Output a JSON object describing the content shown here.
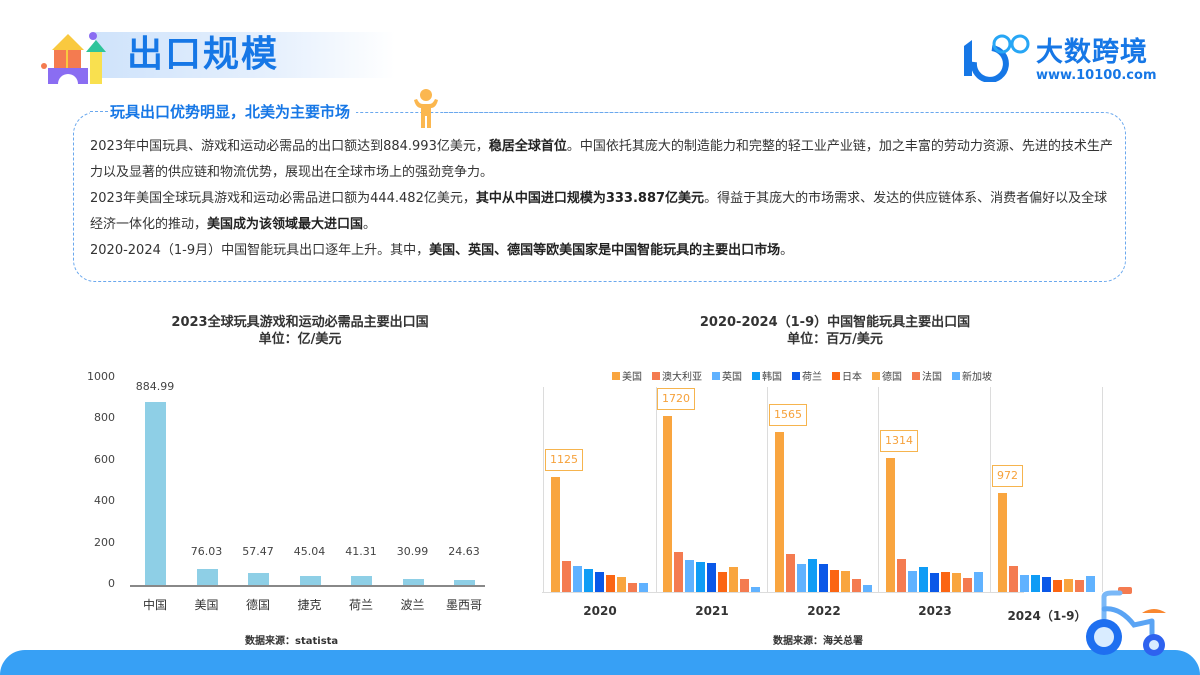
{
  "header": {
    "title": "出口规模",
    "logo_text": "大数跨境",
    "logo_url": "www.10100.com",
    "logo_mark": "1C100"
  },
  "info": {
    "heading": "玩具出口优势明显，北美为主要市场",
    "p1_a": "2023年中国玩具、游戏和运动必需品的出口额达到884.993亿美元，",
    "p1_b": "稳居全球首位",
    "p1_c": "。中国依托其庞大的制造能力和完整的轻工业产业链，加之丰富的劳动力资源、先进的技术生产力以及显著的供应链和物流优势，展现出在全球市场上的强劲竞争力。",
    "p2_a": "2023年美国全球玩具游戏和运动必需品进口额为444.482亿美元，",
    "p2_b": "其中从中国进口规模为333.887亿美元",
    "p2_c": "。得益于其庞大的市场需求、发达的供应链体系、消费者偏好以及全球经济一体化的推动，",
    "p2_d": "美国成为该领域最大进口国",
    "p2_e": "。",
    "p3_a": "2020-2024（1-9月）中国智能玩具出口逐年上升。其中，",
    "p3_b": "美国、英国、德国等欧美国家是中国智能玩具的主要出口市场",
    "p3_c": "。"
  },
  "colors": {
    "brand": "#1677e6",
    "left_bar": "#8ecfe6",
    "bottom_band": "#37a0f5"
  },
  "chart_data": [
    {
      "type": "bar",
      "title": "2023全球玩具游戏和运动必需品主要出口国",
      "subtitle": "单位：亿/美元",
      "categories": [
        "中国",
        "美国",
        "德国",
        "捷克",
        "荷兰",
        "波兰",
        "墨西哥"
      ],
      "values": [
        884.99,
        76.03,
        57.47,
        45.04,
        41.31,
        30.99,
        24.63
      ],
      "value_labels": [
        "884.99",
        "76.03",
        "57.47",
        "45.04",
        "41.31",
        "30.99",
        "24.63"
      ],
      "yticks": [
        "0",
        "200",
        "400",
        "600",
        "800",
        "1000"
      ],
      "ylim": [
        0,
        1000
      ],
      "xlabel": "",
      "ylabel": "",
      "grid": false,
      "source": "数据来源：statista"
    },
    {
      "type": "bar",
      "title": "2020-2024（1-9）中国智能玩具主要出口国",
      "subtitle": "单位：百万/美元",
      "categories": [
        "2020",
        "2021",
        "2022",
        "2023",
        "2024（1-9）"
      ],
      "legend_position": "top",
      "series": [
        {
          "name": "美国",
          "color": "#f9a53f",
          "values": [
            1125,
            1720,
            1565,
            1314,
            972
          ]
        },
        {
          "name": "澳大利亚",
          "color": "#f47b50",
          "values": [
            300,
            395,
            370,
            325,
            250
          ]
        },
        {
          "name": "英国",
          "color": "#60b2ff",
          "values": [
            250,
            310,
            270,
            210,
            165
          ]
        },
        {
          "name": "韩国",
          "color": "#0f9cf5",
          "values": [
            225,
            290,
            320,
            240,
            165
          ]
        },
        {
          "name": "荷兰",
          "color": "#0a58e8",
          "values": [
            195,
            285,
            270,
            190,
            145
          ]
        },
        {
          "name": "日本",
          "color": "#fb6513",
          "values": [
            165,
            200,
            215,
            200,
            120
          ]
        },
        {
          "name": "德国",
          "color": "#f9a53f",
          "values": [
            150,
            240,
            210,
            185,
            130
          ]
        },
        {
          "name": "法国",
          "color": "#f47b50",
          "values": [
            90,
            130,
            125,
            135,
            120
          ]
        },
        {
          "name": "新加坡",
          "color": "#60b2ff",
          "values": [
            90,
            45,
            65,
            200,
            160
          ]
        }
      ],
      "data_labels": [
        "1125",
        "1720",
        "1565",
        "1314",
        "972"
      ],
      "ylim": [
        0,
        1800
      ],
      "grid": false,
      "source": "数据来源：海关总署"
    }
  ]
}
